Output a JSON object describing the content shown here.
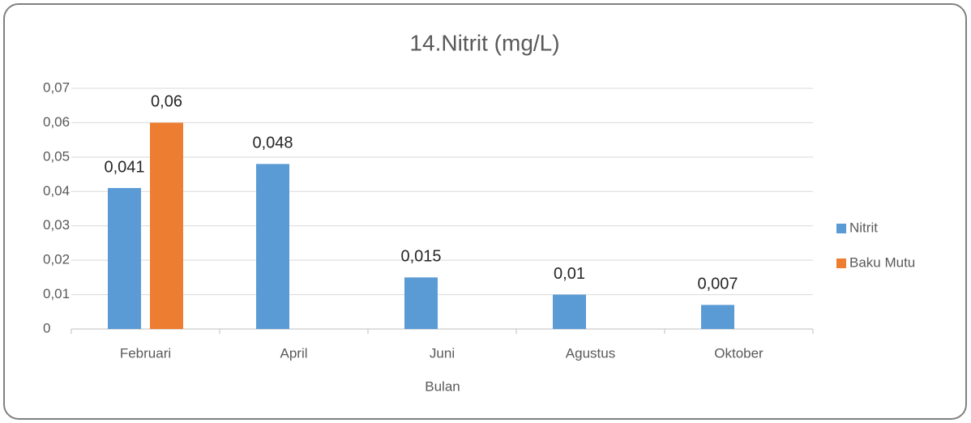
{
  "chart_data": {
    "type": "bar",
    "title": "14.Nitrit (mg/L)",
    "x_label": "Bulan",
    "categories": [
      "Februari",
      "April",
      "Juni",
      "Agustus",
      "Oktober"
    ],
    "series": [
      {
        "name": "Nitrit",
        "color": "#5b9bd5",
        "values": [
          0.041,
          0.048,
          0.015,
          0.01,
          0.007
        ],
        "value_labels": [
          "0,041",
          "0,048",
          "0,015",
          "0,01",
          "0,007"
        ]
      },
      {
        "name": "Baku Mutu",
        "color": "#ed7d31",
        "values": [
          0.06,
          null,
          null,
          null,
          null
        ],
        "value_labels": [
          "0,06",
          null,
          null,
          null,
          null
        ]
      }
    ],
    "ylim": [
      0,
      0.07
    ],
    "yticks": [
      0,
      {
        "value": 0.01,
        "label": "0,01"
      },
      {
        "value": 0.02,
        "label": "0,02"
      },
      {
        "value": 0.03,
        "label": "0,03"
      },
      {
        "value": 0.04,
        "label": "0,04"
      },
      {
        "value": 0.05,
        "label": "0,05"
      },
      {
        "value": 0.06,
        "label": "0,06"
      },
      {
        "value": 0.07,
        "label": "0,07"
      }
    ],
    "grid": true,
    "legend": "right"
  }
}
